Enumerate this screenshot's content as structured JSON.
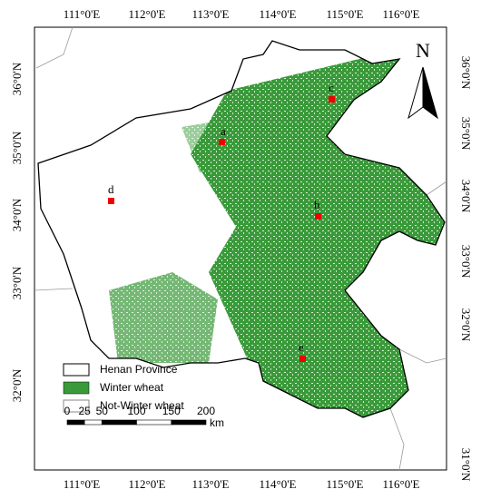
{
  "graticule": {
    "top": [
      "111°0'E",
      "112°0'E",
      "113°0'E",
      "114°0'E",
      "115°0'E",
      "116°0'E"
    ],
    "bottom": [
      "111°0'E",
      "112°0'E",
      "113°0'E",
      "114°0'E",
      "115°0'E",
      "116°0'E"
    ],
    "left": [
      "36°0'N",
      "35°0'N",
      "34°0'N",
      "33°0'N",
      "32°0'N"
    ],
    "right": [
      "36°0'N",
      "35°0'N",
      "34°0'N",
      "33°0'N",
      "32°0'N",
      "31°0'N"
    ]
  },
  "sites": [
    "a",
    "b",
    "c",
    "d",
    "e"
  ],
  "legend": [
    "Henan Province",
    "Winter wheat",
    "Not-Winter wheat"
  ],
  "scale_bar": {
    "ticks": [
      0,
      25,
      50,
      100,
      150,
      200
    ],
    "unit": "km"
  },
  "north_arrow": "N"
}
